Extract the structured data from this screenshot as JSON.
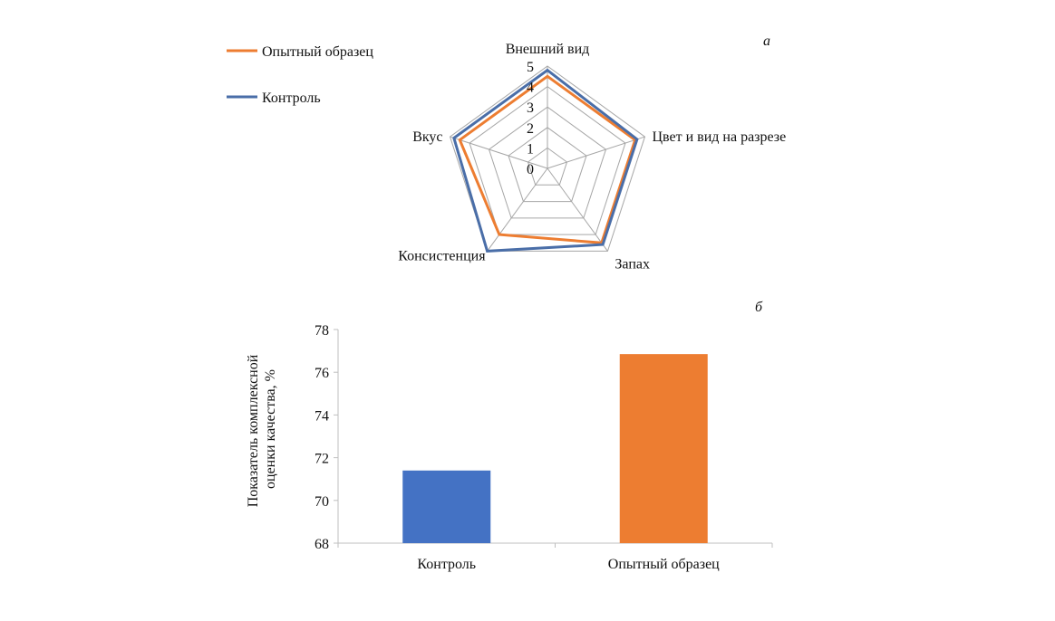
{
  "chart_data": [
    {
      "type": "radar",
      "panel_label": "а",
      "categories": [
        "Внешний вид",
        "Цвет и вид на разрезе",
        "Запах",
        "Консистенция",
        "Вкус"
      ],
      "rlim": [
        0,
        5
      ],
      "ticks": [
        "0",
        "1",
        "2",
        "3",
        "4",
        "5"
      ],
      "grid": true,
      "legend_position": "top-left",
      "series": [
        {
          "name": "Опытный образец",
          "color": "#ED7D31",
          "values": [
            4.5,
            4.5,
            4.5,
            4.0,
            4.5
          ]
        },
        {
          "name": "Контроль",
          "color": "#4A6EA8",
          "values": [
            4.8,
            4.6,
            4.6,
            5.0,
            4.8
          ]
        }
      ]
    },
    {
      "type": "bar",
      "panel_label": "б",
      "categories": [
        "Контроль",
        "Опытный образец"
      ],
      "values": [
        71.4,
        76.85
      ],
      "colors": [
        "#4472C4",
        "#ED7D31"
      ],
      "ylabel_lines": [
        "Показатель комплексной",
        "оценки качества, %"
      ],
      "ylim": [
        68,
        78
      ],
      "yticks": [
        "68",
        "70",
        "72",
        "74",
        "76",
        "78"
      ],
      "grid": false
    }
  ]
}
